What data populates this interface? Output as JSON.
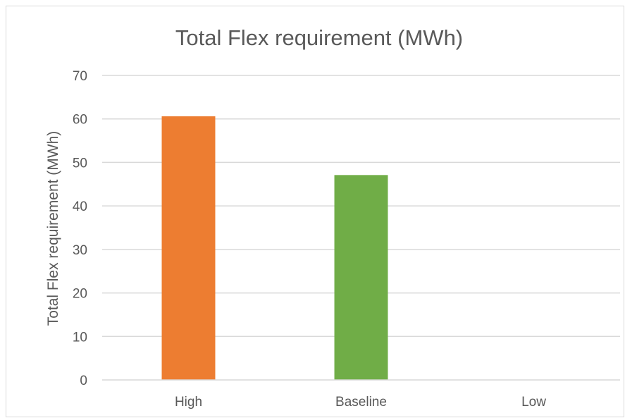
{
  "chart_data": {
    "type": "bar",
    "title": "Total Flex requirement (MWh)",
    "xlabel": "",
    "ylabel": "Total Flex requirement (MWh)",
    "categories": [
      "High",
      "Baseline",
      "Low"
    ],
    "values": [
      60.6,
      47.1,
      0
    ],
    "colors": [
      "#ED7D31",
      "#70AD47",
      "#A5A5A5"
    ],
    "ylim": [
      0,
      70
    ],
    "yticks": [
      0,
      10,
      20,
      30,
      40,
      50,
      60,
      70
    ],
    "grid": true,
    "legend": "none"
  }
}
